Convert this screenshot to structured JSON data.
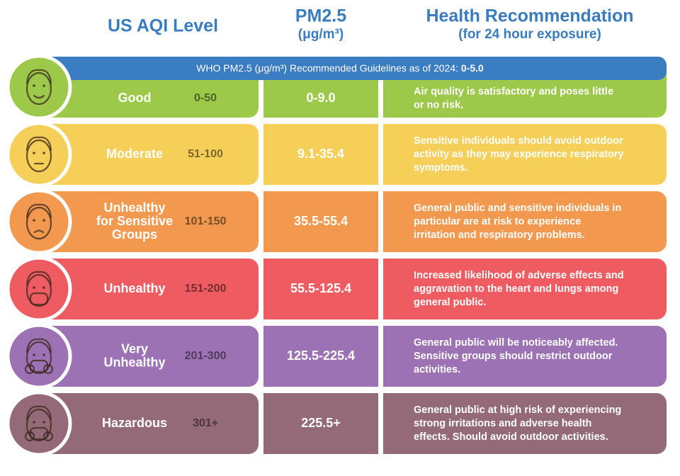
{
  "header": {
    "aqi_title": "US AQI Level",
    "pm_title": "PM2.5",
    "pm_unit": "(μg/m³)",
    "rec_title": "Health Recommendation",
    "rec_subtitle": "(for 24 hour exposure)"
  },
  "banner": {
    "text": "WHO PM2.5 (μg/m³) Recommended Guidelines as of 2024: ",
    "value": "0-5.0"
  },
  "rows": [
    {
      "level": [
        "Good"
      ],
      "aqi": "0-50",
      "pm": "0-9.0",
      "recommendation": [
        "Air quality is satisfactory and poses little",
        "or no risk."
      ],
      "color": "#9dc94a"
    },
    {
      "level": [
        "Moderate"
      ],
      "aqi": "51-100",
      "pm": "9.1-35.4",
      "recommendation": [
        "Sensitive individuals should avoid outdoor",
        "activity as they may experience respiratory",
        "symptoms."
      ],
      "color": "#f5cf57"
    },
    {
      "level": [
        "Unhealthy",
        "for Sensitive",
        "Groups"
      ],
      "aqi": "101-150",
      "pm": "35.5-55.4",
      "recommendation": [
        "General public and sensitive individuals in",
        "particular are at risk to experience",
        "irritation and respiratory problems."
      ],
      "color": "#f3994f"
    },
    {
      "level": [
        "Unhealthy"
      ],
      "aqi": "151-200",
      "pm": "55.5-125.4",
      "recommendation": [
        "Increased likelihood of adverse effects and",
        "aggravation to the heart and lungs among",
        "general public."
      ],
      "color": "#ee5b60"
    },
    {
      "level": [
        "Very",
        "Unhealthy"
      ],
      "aqi": "201-300",
      "pm": "125.5-225.4",
      "recommendation": [
        "General public will be noticeably affected.",
        "Sensitive groups should restrict outdoor",
        "activities."
      ],
      "color": "#9d72b5"
    },
    {
      "level": [
        "Hazardous"
      ],
      "aqi": "301+",
      "pm": "225.5+",
      "recommendation": [
        "General public at high risk of experiencing",
        "strong irritations and adverse health",
        "effects. Should avoid outdoor activities."
      ],
      "color": "#956a78"
    }
  ]
}
